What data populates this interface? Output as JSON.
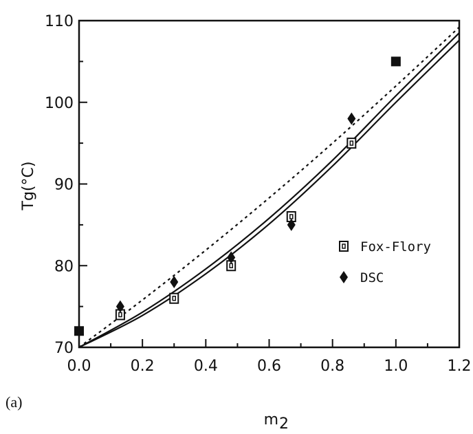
{
  "chart_data": {
    "type": "scatter",
    "panel_label": "(a)",
    "xlabel": "m",
    "xlabel_subscript": "2",
    "ylabel": "Tg(°C)",
    "xlim": [
      0.0,
      1.2
    ],
    "ylim": [
      70,
      110
    ],
    "x_ticks": [
      "0.0",
      "0.2",
      "0.4",
      "0.6",
      "0.8",
      "1.0",
      "1.2"
    ],
    "y_ticks": [
      "70",
      "80",
      "90",
      "100",
      "110"
    ],
    "grid": false,
    "legend_position": "right-middle",
    "legend": [
      {
        "label": "Fox-Flory",
        "marker": "open-square"
      },
      {
        "label": "DSC",
        "marker": "filled-diamond"
      }
    ],
    "series": [
      {
        "name": "Fox-Flory",
        "marker": "open-square",
        "points": [
          [
            0.13,
            74.0
          ],
          [
            0.3,
            76.0
          ],
          [
            0.48,
            80.0
          ],
          [
            0.67,
            86.0
          ],
          [
            0.86,
            95.0
          ]
        ]
      },
      {
        "name": "DSC",
        "marker": "filled-diamond",
        "points": [
          [
            0.13,
            75.0
          ],
          [
            0.3,
            78.0
          ],
          [
            0.48,
            81.0
          ],
          [
            0.67,
            85.0
          ],
          [
            0.86,
            98.0
          ]
        ]
      },
      {
        "marker": "filled-square",
        "points": [
          [
            0.0,
            72.0
          ],
          [
            1.0,
            105.0
          ]
        ]
      }
    ],
    "curves": [
      {
        "style": "dotted",
        "points": [
          [
            0.0,
            70.0
          ],
          [
            0.2,
            75.8
          ],
          [
            0.4,
            81.9
          ],
          [
            0.6,
            88.3
          ],
          [
            0.8,
            95.0
          ],
          [
            1.0,
            102.0
          ],
          [
            1.2,
            109.2
          ]
        ]
      },
      {
        "style": "solid",
        "points": [
          [
            0.0,
            70.0
          ],
          [
            0.2,
            74.3
          ],
          [
            0.4,
            79.6
          ],
          [
            0.6,
            85.8
          ],
          [
            0.8,
            92.9
          ],
          [
            1.0,
            100.8
          ],
          [
            1.2,
            108.5
          ]
        ]
      },
      {
        "style": "solid",
        "points": [
          [
            0.0,
            70.0
          ],
          [
            0.2,
            73.9
          ],
          [
            0.4,
            79.0
          ],
          [
            0.6,
            85.1
          ],
          [
            0.8,
            92.2
          ],
          [
            1.0,
            100.0
          ],
          [
            1.2,
            107.6
          ]
        ]
      }
    ],
    "colors": {
      "ink": "#111111",
      "background": "#ffffff"
    }
  }
}
